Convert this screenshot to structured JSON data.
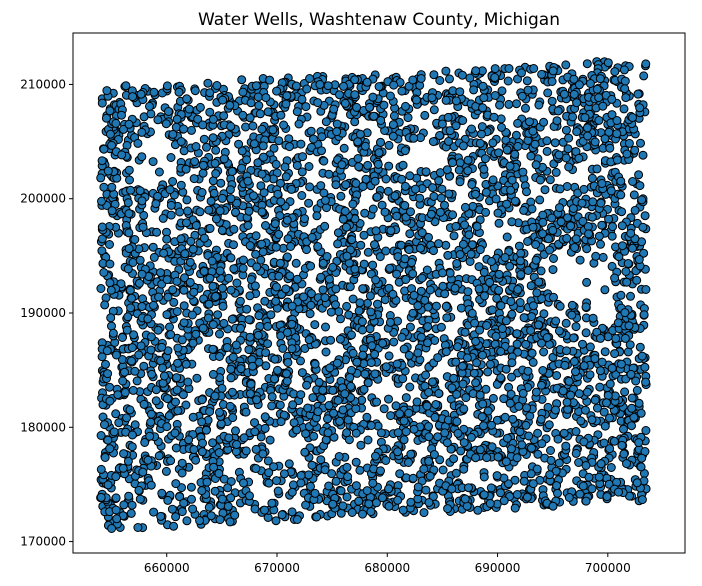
{
  "chart_data": {
    "type": "scatter",
    "title": "Water Wells, Washtenaw County, Michigan",
    "xlabel": "",
    "ylabel": "",
    "xlim": [
      651500,
      707000
    ],
    "ylim": [
      169000,
      214500
    ],
    "xticks": [
      660000,
      670000,
      680000,
      690000,
      700000
    ],
    "yticks": [
      170000,
      180000,
      190000,
      200000,
      210000
    ],
    "xtick_labels": [
      "660000",
      "670000",
      "680000",
      "690000",
      "700000"
    ],
    "ytick_labels": [
      "170000",
      "180000",
      "190000",
      "200000",
      "210000"
    ],
    "grid": false,
    "legend": "none",
    "marker": {
      "shape": "circle",
      "fill": "#1f77b4",
      "edge": "#000000"
    },
    "point_count_approx": 4500,
    "region": {
      "x_min": 654000,
      "x_max": 703500,
      "y_bottom_at_xmin": 171000,
      "y_bottom_at_xmax": 173500,
      "y_top_at_xmin": 209800,
      "y_top_at_xmax": 212200
    },
    "points": [
      [
        655000,
        205000
      ],
      [
        658000,
        200500
      ],
      [
        661000,
        208000
      ],
      [
        664500,
        195500
      ],
      [
        667000,
        188000
      ],
      [
        670000,
        182000
      ],
      [
        673500,
        176000
      ],
      [
        676000,
        199000
      ],
      [
        679000,
        204000
      ],
      [
        682000,
        196000
      ],
      [
        685000,
        186500
      ],
      [
        688000,
        178000
      ],
      [
        691000,
        183500
      ],
      [
        694000,
        192500
      ],
      [
        697000,
        201000
      ],
      [
        700000,
        206500
      ],
      [
        702500,
        179000
      ],
      [
        656500,
        173500
      ],
      [
        662000,
        176500
      ],
      [
        668000,
        207500
      ],
      [
        674000,
        209500
      ],
      [
        680500,
        210500
      ],
      [
        686500,
        211000
      ],
      [
        692500,
        211500
      ],
      [
        699000,
        212000
      ],
      [
        683500,
        174500
      ],
      [
        677500,
        185000
      ],
      [
        660000,
        185500
      ],
      [
        665500,
        180500
      ],
      [
        671000,
        193000
      ]
    ]
  }
}
